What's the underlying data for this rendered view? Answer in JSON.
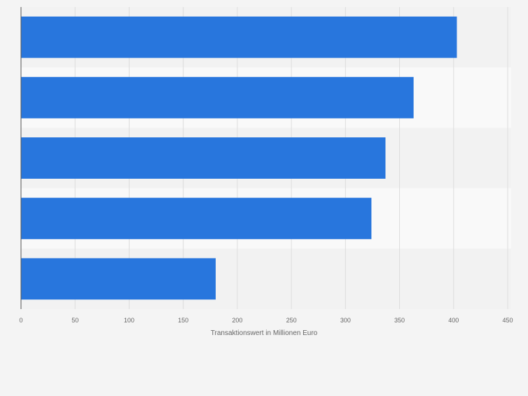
{
  "chart_data": {
    "type": "bar",
    "orientation": "horizontal",
    "categories": [
      "",
      "",
      "",
      "",
      ""
    ],
    "values": [
      403,
      363,
      337,
      324,
      180
    ],
    "title": "",
    "xlabel": "Transaktionswert in Millionen Euro",
    "ylabel": "",
    "xlim": [
      0,
      450
    ],
    "ticks": [
      0,
      50,
      100,
      150,
      200,
      250,
      300,
      350,
      400,
      450
    ],
    "tick_labels": [
      "0",
      "50",
      "100",
      "150",
      "200",
      "250",
      "300",
      "350",
      "400",
      "450"
    ],
    "grid": true,
    "bar_color": "#2876dd",
    "band_colors": [
      "#f2f2f2",
      "#f9f9f9"
    ]
  }
}
